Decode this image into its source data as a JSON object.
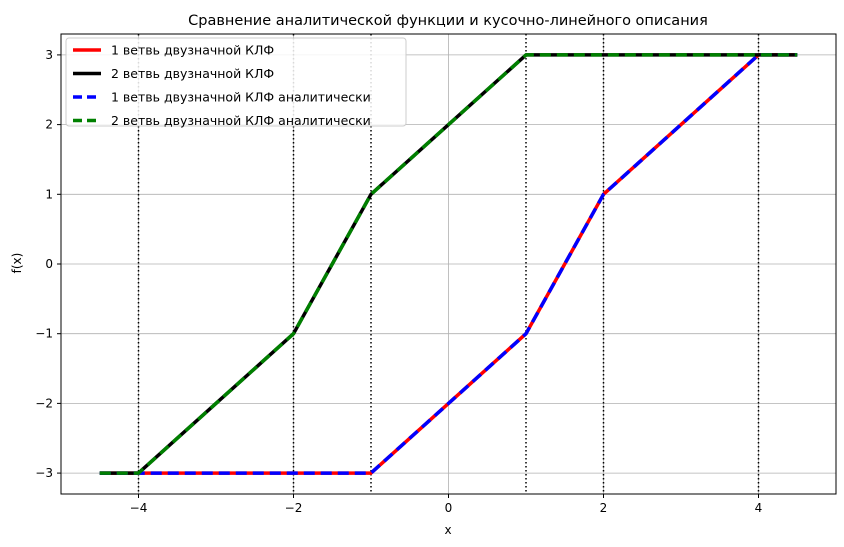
{
  "chart_data": {
    "type": "line",
    "title": "Сравнение аналитической функции и кусочно-линейного описания",
    "xlabel": "x",
    "ylabel": "f(x)",
    "xlim": [
      -5,
      5
    ],
    "ylim": [
      -3.3,
      3.3
    ],
    "xticks": [
      -4,
      -2,
      0,
      2,
      4
    ],
    "yticks": [
      -3,
      -2,
      -1,
      0,
      1,
      2,
      3
    ],
    "xtick_labels": [
      "−4",
      "−2",
      "0",
      "2",
      "4"
    ],
    "ytick_labels": [
      "−3",
      "−2",
      "−1",
      "0",
      "1",
      "2",
      "3"
    ],
    "grid": true,
    "legend_position": "top-left",
    "vertical_lines": [
      -4,
      -2,
      -1,
      1,
      2,
      4
    ],
    "series": [
      {
        "name": "1 ветвь двузначной КЛФ",
        "color": "#ff0000",
        "style": "solid",
        "x": [
          -4.5,
          -4,
          -2,
          -1,
          1,
          2,
          4,
          4.5
        ],
        "y": [
          -3,
          -3,
          -3,
          -3,
          -1,
          1,
          3,
          3
        ]
      },
      {
        "name": "2 ветвь двузначной КЛФ",
        "color": "#000000",
        "style": "solid",
        "x": [
          -4.5,
          -4,
          -2,
          -1,
          1,
          2,
          4,
          4.5
        ],
        "y": [
          -3,
          -3,
          -1,
          1,
          3,
          3,
          3,
          3
        ]
      },
      {
        "name": "1 ветвь двузначной КЛФ аналитически",
        "color": "#0000ff",
        "style": "dashed",
        "x": [
          -4.5,
          -4,
          -2,
          -1,
          1,
          2,
          4,
          4.5
        ],
        "y": [
          -3,
          -3,
          -3,
          -3,
          -1,
          1,
          3,
          3
        ]
      },
      {
        "name": "2 ветвь двузначной КЛФ аналитически",
        "color": "#008000",
        "style": "dashed",
        "x": [
          -4.5,
          -4,
          -2,
          -1,
          1,
          2,
          4,
          4.5
        ],
        "y": [
          -3,
          -3,
          -1,
          1,
          3,
          3,
          3,
          3
        ]
      }
    ]
  }
}
